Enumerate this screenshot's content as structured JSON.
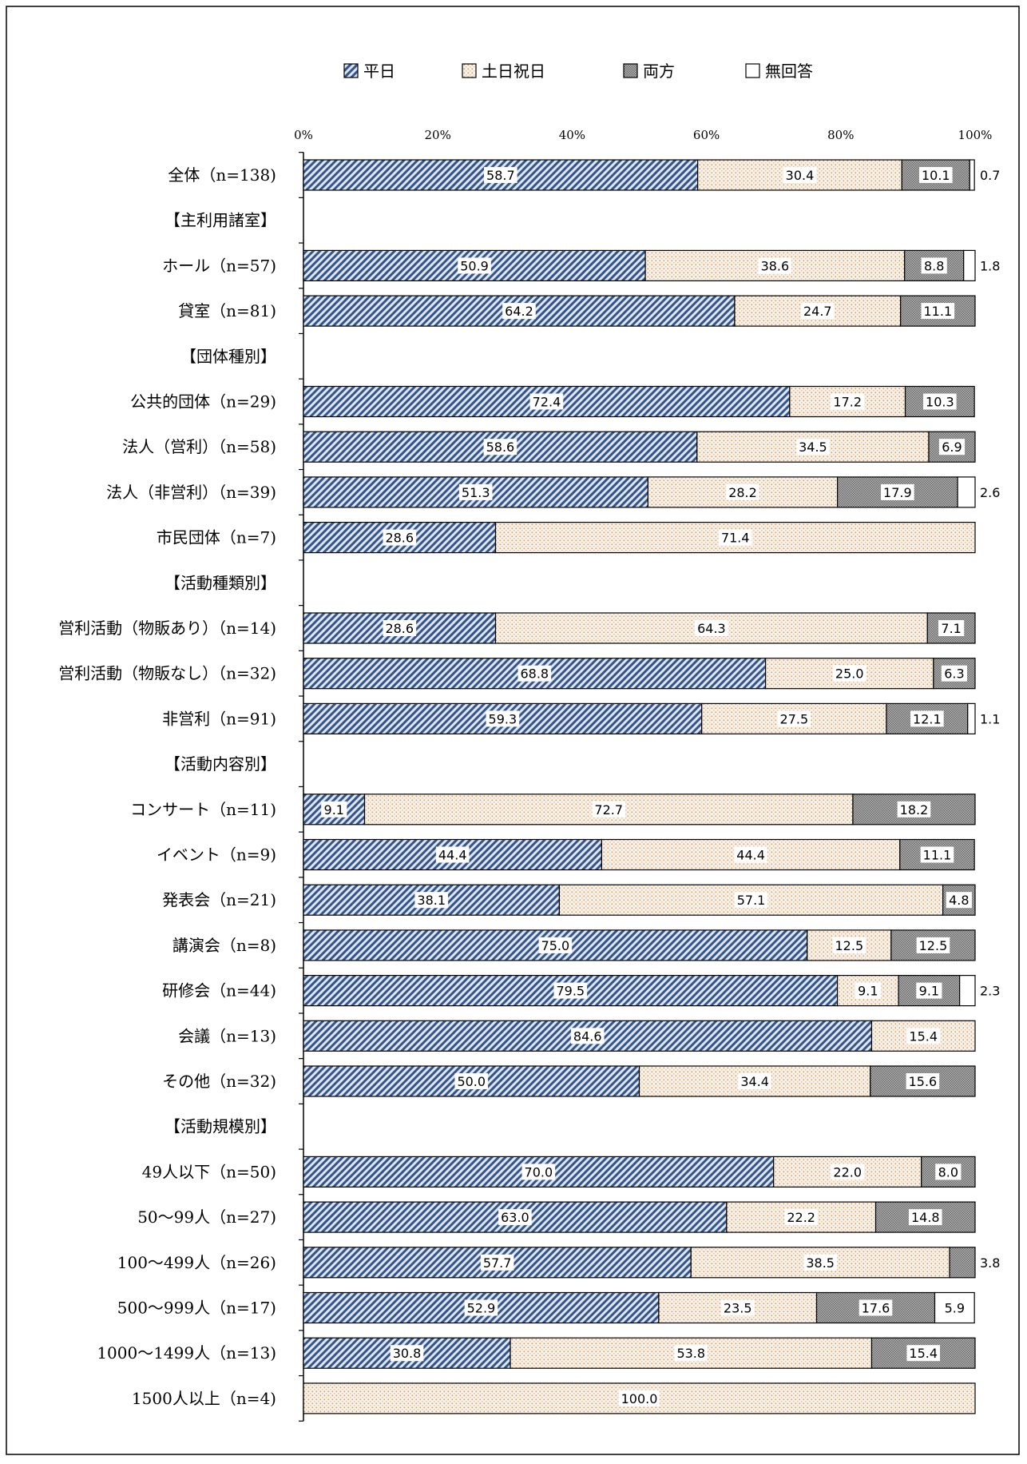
{
  "chart_data": {
    "type": "bar",
    "stacked": true,
    "orientation": "horizontal",
    "percent_axis": true,
    "grid": false,
    "legend_position": "top",
    "x_ticks": [
      "0%",
      "20%",
      "40%",
      "60%",
      "80%",
      "100%"
    ],
    "xlim": [
      0,
      100
    ],
    "series": [
      {
        "name": "平日",
        "color": "#4a6fa5",
        "pattern": "diagonal-hatch"
      },
      {
        "name": "土日祝日",
        "color": "#e8a35a",
        "pattern": "dotted"
      },
      {
        "name": "両方",
        "color": "#8c8c8c",
        "pattern": "dense-dots"
      },
      {
        "name": "無回答",
        "color": "#ffffff",
        "pattern": "none"
      }
    ],
    "rows": [
      {
        "label": "全体（n=138)",
        "values": [
          58.7,
          30.4,
          10.1,
          0.7
        ]
      },
      {
        "label": "【主利用諸室】",
        "header": true
      },
      {
        "label": "ホール（n=57)",
        "values": [
          50.9,
          38.6,
          8.8,
          1.8
        ]
      },
      {
        "label": "貸室（n=81)",
        "values": [
          64.2,
          24.7,
          11.1,
          0
        ]
      },
      {
        "label": "【団体種別】",
        "header": true
      },
      {
        "label": "公共的団体（n=29)",
        "values": [
          72.4,
          17.2,
          10.3,
          0
        ]
      },
      {
        "label": "法人（営利）（n=58)",
        "values": [
          58.6,
          34.5,
          6.9,
          0
        ]
      },
      {
        "label": "法人（非営利）（n=39)",
        "values": [
          51.3,
          28.2,
          17.9,
          2.6
        ]
      },
      {
        "label": "市民団体（n=7)",
        "values": [
          28.6,
          71.4,
          0,
          0
        ]
      },
      {
        "label": "【活動種類別】",
        "header": true
      },
      {
        "label": "営利活動（物販あり）（n=14)",
        "values": [
          28.6,
          64.3,
          7.1,
          0
        ]
      },
      {
        "label": "営利活動（物販なし）（n=32)",
        "values": [
          68.8,
          25.0,
          6.3,
          0
        ]
      },
      {
        "label": "非営利（n=91)",
        "values": [
          59.3,
          27.5,
          12.1,
          1.1
        ]
      },
      {
        "label": "【活動内容別】",
        "header": true
      },
      {
        "label": "コンサート（n=11)",
        "values": [
          9.1,
          72.7,
          18.2,
          0
        ]
      },
      {
        "label": "イベント（n=9)",
        "values": [
          44.4,
          44.4,
          11.1,
          0
        ]
      },
      {
        "label": "発表会（n=21)",
        "values": [
          38.1,
          57.1,
          4.8,
          0
        ]
      },
      {
        "label": "講演会（n=8)",
        "values": [
          75.0,
          12.5,
          12.5,
          0
        ]
      },
      {
        "label": "研修会（n=44)",
        "values": [
          79.5,
          9.1,
          9.1,
          2.3
        ]
      },
      {
        "label": "会議（n=13)",
        "values": [
          84.6,
          15.4,
          0,
          0
        ]
      },
      {
        "label": "その他（n=32)",
        "values": [
          50.0,
          34.4,
          15.6,
          0
        ]
      },
      {
        "label": "【活動規模別】",
        "header": true
      },
      {
        "label": "49人以下（n=50)",
        "values": [
          70.0,
          22.0,
          8.0,
          0
        ]
      },
      {
        "label": "50～99人（n=27)",
        "values": [
          63.0,
          22.2,
          14.8,
          0
        ]
      },
      {
        "label": "100～499人（n=26)",
        "values": [
          57.7,
          38.5,
          3.8,
          0
        ]
      },
      {
        "label": "500～999人（n=17)",
        "values": [
          52.9,
          23.5,
          17.6,
          5.9
        ]
      },
      {
        "label": "1000～1499人（n=13)",
        "values": [
          30.8,
          53.8,
          15.4,
          0
        ]
      },
      {
        "label": "1500人以上（n=4)",
        "values": [
          0,
          100.0,
          0,
          0
        ]
      }
    ]
  }
}
